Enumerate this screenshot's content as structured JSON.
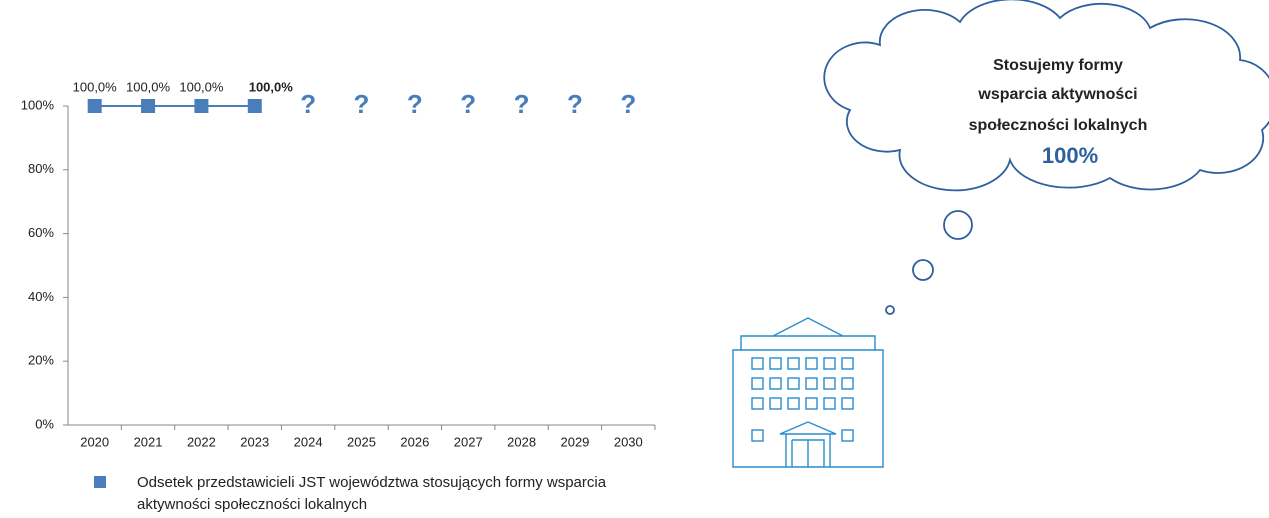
{
  "chart_data": {
    "type": "line",
    "categories": [
      "2020",
      "2021",
      "2022",
      "2023",
      "2024",
      "2025",
      "2026",
      "2027",
      "2028",
      "2029",
      "2030"
    ],
    "series": [
      {
        "name": "Odsetek przedstawicieli JST województwa stosujących formy wsparcia aktywności społeczności lokalnych",
        "color": "#4a7ebb",
        "values": [
          100,
          100,
          100,
          100,
          null,
          null,
          null,
          null,
          null,
          null,
          null
        ],
        "value_labels": [
          "100,0%",
          "100,0%",
          "100,0%",
          "100,0%",
          null,
          null,
          null,
          null,
          null,
          null,
          null
        ]
      }
    ],
    "annotations": [
      "?",
      "?",
      "?",
      "?",
      "?",
      "?",
      "?"
    ],
    "ylim": [
      0,
      100
    ],
    "yticks": [
      {
        "value": 0,
        "label": "0%"
      },
      {
        "value": 20,
        "label": "20%"
      },
      {
        "value": 40,
        "label": "40%"
      },
      {
        "value": 60,
        "label": "60%"
      },
      {
        "value": 80,
        "label": "80%"
      },
      {
        "value": 100,
        "label": "100%"
      }
    ],
    "grid": false,
    "legend": "bottom"
  },
  "callout": {
    "lines": [
      "Stosujemy formy",
      "wsparcia aktywności",
      "społeczności lokalnych"
    ],
    "value": "100%"
  }
}
